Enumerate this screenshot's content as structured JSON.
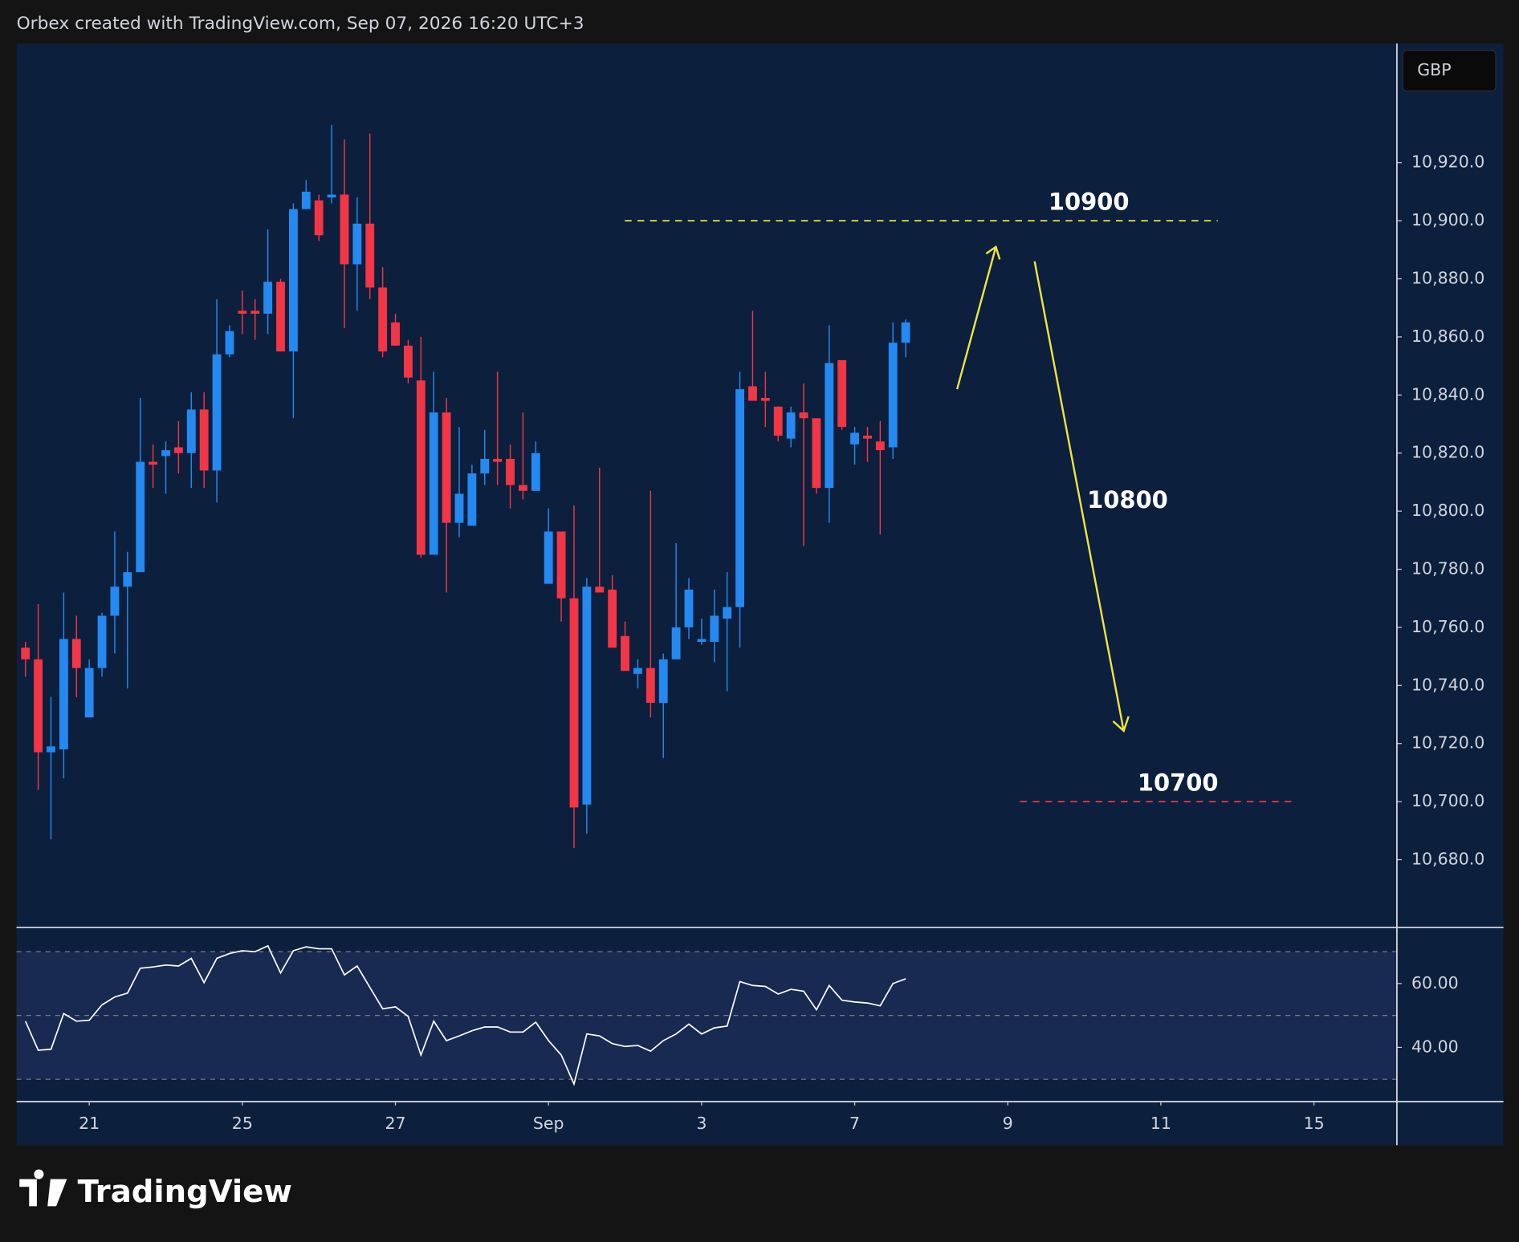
{
  "chart_data": {
    "type": "candlestick",
    "header": "Orbex created with TradingView.com, Sep 07, 2026 16:20 UTC+3",
    "currency": "GBP",
    "brand": "TradingView",
    "up_color": "#2489f0",
    "down_color": "#f23645",
    "grid": false,
    "open": [
      10753,
      10749,
      10717,
      10718,
      10756,
      10729,
      10746,
      10764,
      10774,
      10779,
      10817,
      10819,
      10822,
      10820,
      10835,
      10814,
      10854,
      10869,
      10869,
      10868,
      10879,
      10855,
      10904,
      10907,
      10908,
      10909,
      10885,
      10899,
      10877,
      10865,
      10857,
      10845,
      10785,
      10834,
      10796,
      10795,
      10813,
      10818,
      10818,
      10809,
      10807,
      10775,
      10793,
      10770,
      10699,
      10774,
      10773,
      10757,
      10744,
      10746,
      10734,
      10749,
      10760,
      10755,
      10755,
      10763,
      10767,
      10843,
      10839,
      10836,
      10825,
      10834,
      10832,
      10808,
      10852,
      10823,
      10826,
      10824,
      10822,
      10858
    ],
    "high": [
      10755,
      10768,
      10736,
      10772,
      10764,
      10749,
      10765,
      10793,
      10786,
      10839,
      10823,
      10824,
      10831,
      10841,
      10841,
      10873,
      10864,
      10876,
      10873,
      10897,
      10880,
      10906,
      10914,
      10909,
      10933,
      10928,
      10908,
      10930,
      10884,
      10868,
      10859,
      10860,
      10848,
      10839,
      10829,
      10816,
      10828,
      10848,
      10823,
      10834,
      10824,
      10801,
      10793,
      10802,
      10777,
      10815,
      10778,
      10762,
      10749,
      10807,
      10751,
      10789,
      10777,
      10763,
      10773,
      10779,
      10848,
      10869,
      10848,
      10836,
      10836,
      10844,
      10832,
      10864,
      10852,
      10829,
      10829,
      10831,
      10865,
      10866
    ],
    "low": [
      10743,
      10704,
      10687,
      10708,
      10736,
      10729,
      10743,
      10751,
      10739,
      10779,
      10808,
      10806,
      10813,
      10808,
      10808,
      10803,
      10853,
      10861,
      10859,
      10861,
      10855,
      10832,
      10904,
      10893,
      10906,
      10863,
      10869,
      10873,
      10853,
      10857,
      10844,
      10784,
      10785,
      10772,
      10791,
      10795,
      10809,
      10809,
      10801,
      10804,
      10807,
      10775,
      10762,
      10684,
      10689,
      10772,
      10753,
      10745,
      10739,
      10729,
      10715,
      10749,
      10756,
      10754,
      10748,
      10738,
      10753,
      10838,
      10829,
      10824,
      10822,
      10788,
      10806,
      10796,
      10828,
      10816,
      10817,
      10792,
      10818,
      10853
    ],
    "close": [
      10749,
      10717,
      10719,
      10756,
      10746,
      10746,
      10764,
      10774,
      10779,
      10817,
      10816,
      10821,
      10820,
      10835,
      10814,
      10854,
      10862,
      10868,
      10868,
      10879,
      10855,
      10904,
      10910,
      10895,
      10909,
      10885,
      10899,
      10877,
      10855,
      10857,
      10846,
      10785,
      10834,
      10796,
      10806,
      10813,
      10818,
      10817,
      10809,
      10807,
      10820,
      10793,
      10770,
      10698,
      10774,
      10772,
      10753,
      10745,
      10746,
      10734,
      10749,
      10760,
      10773,
      10756,
      10764,
      10767,
      10842,
      10838,
      10838,
      10826,
      10834,
      10832,
      10808,
      10851,
      10829,
      10827,
      10825,
      10821,
      10858,
      10865
    ],
    "xlim": [
      -0.7,
      107.5
    ],
    "xticks": [
      {
        "value": 5,
        "label": "21"
      },
      {
        "value": 17,
        "label": "25"
      },
      {
        "value": 29,
        "label": "27"
      },
      {
        "value": 41,
        "label": "Sep"
      },
      {
        "value": 53,
        "label": "3"
      },
      {
        "value": 65,
        "label": "7"
      },
      {
        "value": 77,
        "label": "9"
      },
      {
        "value": 89,
        "label": "11"
      },
      {
        "value": 101,
        "label": "15"
      }
    ],
    "ylim": [
      10656.7,
      10961
    ],
    "yticks": [
      {
        "value": 10680,
        "label": "10,680.0"
      },
      {
        "value": 10700,
        "label": "10,700.0"
      },
      {
        "value": 10720,
        "label": "10,720.0"
      },
      {
        "value": 10740,
        "label": "10,740.0"
      },
      {
        "value": 10760,
        "label": "10,760.0"
      },
      {
        "value": 10780,
        "label": "10,780.0"
      },
      {
        "value": 10800,
        "label": "10,800.0"
      },
      {
        "value": 10820,
        "label": "10,820.0"
      },
      {
        "value": 10840,
        "label": "10,840.0"
      },
      {
        "value": 10860,
        "label": "10,860.0"
      },
      {
        "value": 10880,
        "label": "10,880.0"
      },
      {
        "value": 10900,
        "label": "10,900.0"
      },
      {
        "value": 10920,
        "label": "10,920.0"
      }
    ],
    "levels": [
      {
        "value": 10900,
        "label": "10900",
        "color": "#f0e442"
      },
      {
        "value": 10700,
        "label": "10700",
        "color": "#f23645"
      }
    ],
    "annotations": [
      "10800"
    ],
    "indicator": {
      "type": "line",
      "color": "#ffffff",
      "values": [
        48.2,
        39.1,
        39.4,
        50.6,
        48.2,
        48.5,
        53.3,
        55.8,
        57.0,
        64.8,
        65.2,
        65.8,
        65.5,
        67.9,
        60.3,
        67.9,
        69.4,
        70.3,
        70.0,
        71.8,
        63.3,
        70.3,
        71.5,
        70.9,
        70.9,
        62.7,
        65.5,
        58.8,
        52.1,
        52.7,
        49.7,
        37.6,
        48.2,
        42.1,
        43.6,
        45.2,
        46.4,
        46.4,
        44.8,
        44.8,
        47.9,
        42.1,
        37.6,
        28.5,
        44.2,
        43.6,
        41.2,
        40.3,
        40.6,
        38.8,
        42.1,
        44.2,
        47.3,
        44.2,
        46.1,
        46.7,
        60.6,
        59.4,
        59.1,
        56.7,
        58.2,
        57.6,
        51.8,
        59.4,
        54.8,
        54.2,
        53.9,
        53.0,
        60.0,
        61.5
      ],
      "ylim": [
        23,
        77.6
      ],
      "yticks": [
        {
          "value": 40,
          "label": "40.00"
        },
        {
          "value": 60,
          "label": "60.00"
        }
      ],
      "levels": [
        70,
        50,
        30
      ]
    }
  }
}
